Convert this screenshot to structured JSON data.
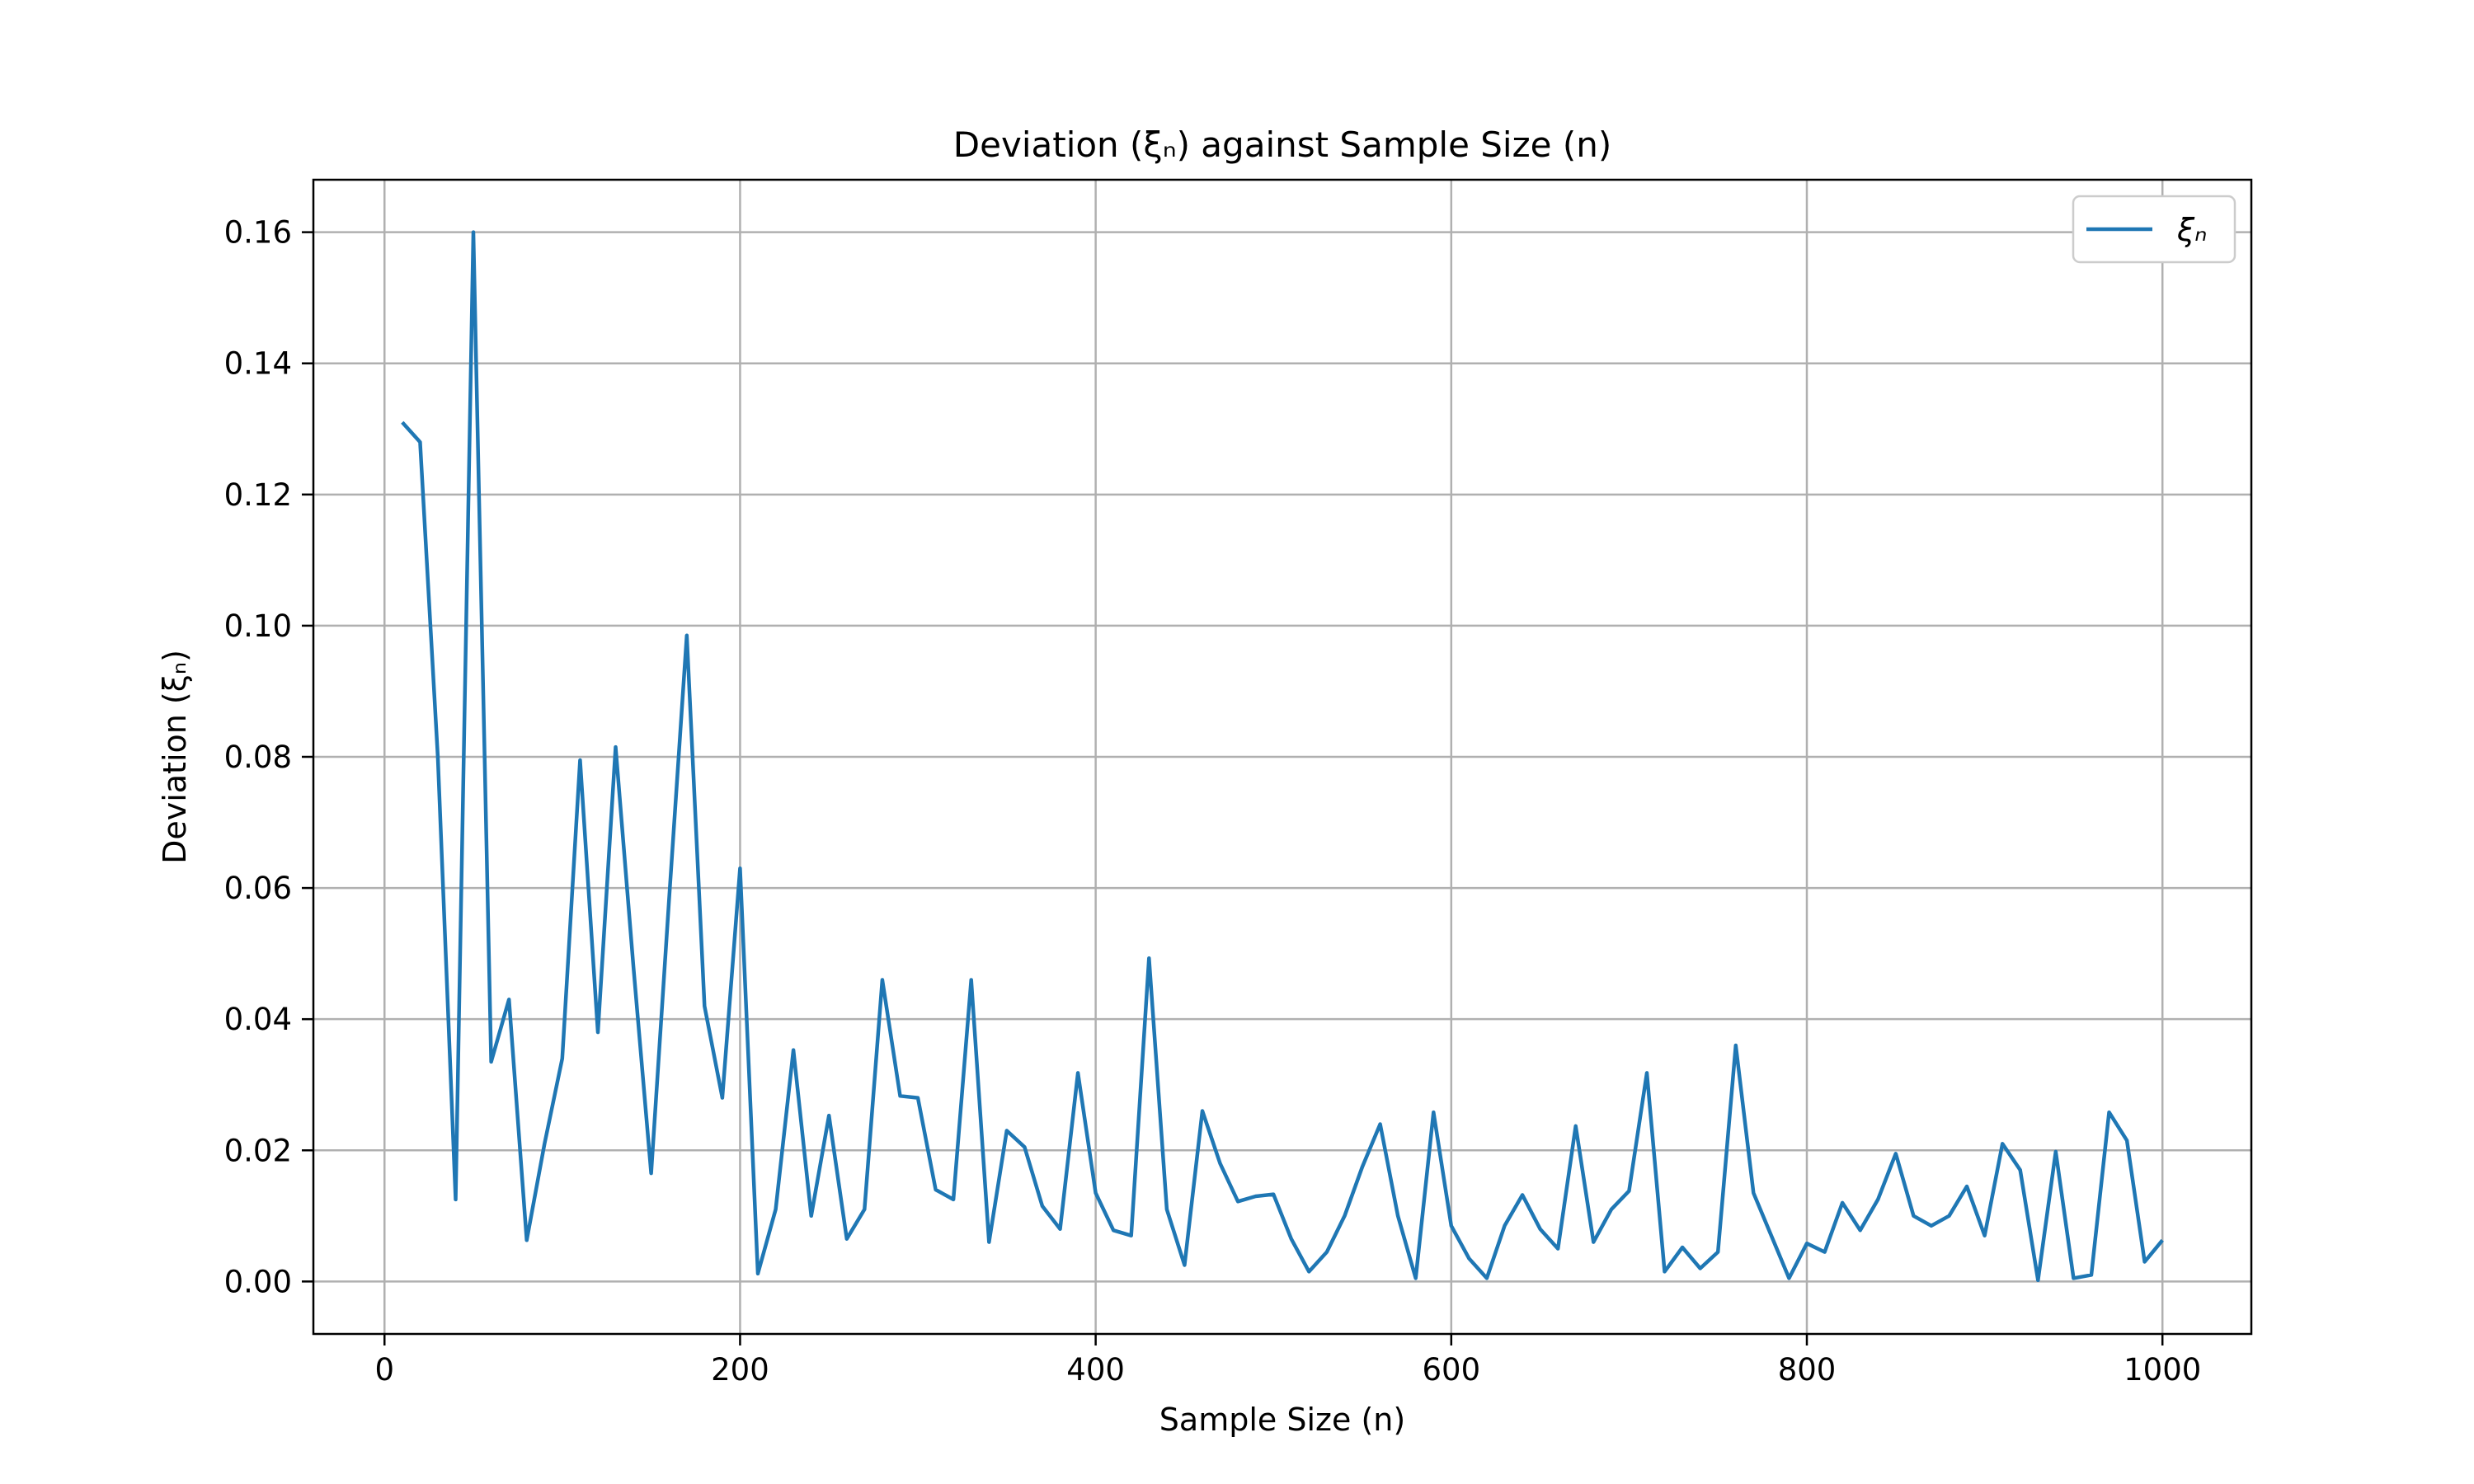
{
  "chart_data": {
    "type": "line",
    "title": "Deviation (ξₙ) against Sample Size (n)",
    "xlabel": "Sample Size (n)",
    "ylabel": "Deviation (ξₙ)",
    "xlim": [
      -40,
      1050
    ],
    "ylim": [
      -0.008,
      0.168
    ],
    "xticks": [
      0,
      200,
      400,
      600,
      800,
      1000
    ],
    "yticks": [
      0.0,
      0.02,
      0.04,
      0.06,
      0.08,
      0.1,
      0.12,
      0.14,
      0.16
    ],
    "xtick_labels": [
      "0",
      "200",
      "400",
      "600",
      "800",
      "1000"
    ],
    "ytick_labels": [
      "0.00",
      "0.02",
      "0.04",
      "0.06",
      "0.08",
      "0.10",
      "0.12",
      "0.14",
      "0.16"
    ],
    "grid": true,
    "legend_position": "top-right",
    "series": [
      {
        "name": "ξₙ",
        "color": "#1f77b4",
        "x": [
          10,
          20,
          30,
          40,
          50,
          60,
          70,
          80,
          90,
          100,
          110,
          120,
          130,
          140,
          150,
          160,
          170,
          180,
          190,
          200,
          210,
          220,
          230,
          240,
          250,
          260,
          270,
          280,
          290,
          300,
          310,
          320,
          330,
          340,
          350,
          360,
          370,
          380,
          390,
          400,
          410,
          420,
          430,
          440,
          450,
          460,
          470,
          480,
          490,
          500,
          510,
          520,
          530,
          540,
          550,
          560,
          570,
          580,
          590,
          600,
          610,
          620,
          630,
          640,
          650,
          660,
          670,
          680,
          690,
          700,
          710,
          720,
          730,
          740,
          750,
          760,
          770,
          780,
          790,
          800,
          810,
          820,
          830,
          840,
          850,
          860,
          870,
          880,
          890,
          900,
          910,
          920,
          930,
          940,
          950,
          960,
          970,
          980,
          990,
          1000
        ],
        "y": [
          0.131,
          0.128,
          0.08,
          0.0125,
          0.16,
          0.0335,
          0.043,
          0.0063,
          0.021,
          0.034,
          0.0795,
          0.038,
          0.0815,
          0.048,
          0.0165,
          0.058,
          0.0985,
          0.042,
          0.028,
          0.063,
          0.0012,
          0.011,
          0.0353,
          0.01,
          0.0253,
          0.0065,
          0.011,
          0.046,
          0.0283,
          0.028,
          0.014,
          0.0125,
          0.046,
          0.006,
          0.023,
          0.0205,
          0.0115,
          0.008,
          0.0318,
          0.0135,
          0.0078,
          0.007,
          0.0493,
          0.011,
          0.0025,
          0.026,
          0.018,
          0.0122,
          0.013,
          0.0133,
          0.0065,
          0.0015,
          0.0045,
          0.01,
          0.0175,
          0.024,
          0.01,
          0.0005,
          0.0258,
          0.0085,
          0.0035,
          0.0005,
          0.0085,
          0.0132,
          0.008,
          0.005,
          0.0237,
          0.006,
          0.011,
          0.0138,
          0.0318,
          0.0015,
          0.0052,
          0.002,
          0.0045,
          0.036,
          0.0135,
          0.007,
          0.0005,
          0.0058,
          0.0045,
          0.012,
          0.0078,
          0.0125,
          0.0195,
          0.01,
          0.0085,
          0.01,
          0.0145,
          0.007,
          0.021,
          0.017,
          0.0002,
          0.0198,
          0.0005,
          0.001,
          0.0258,
          0.0215,
          0.003,
          0.0063
        ]
      }
    ]
  }
}
